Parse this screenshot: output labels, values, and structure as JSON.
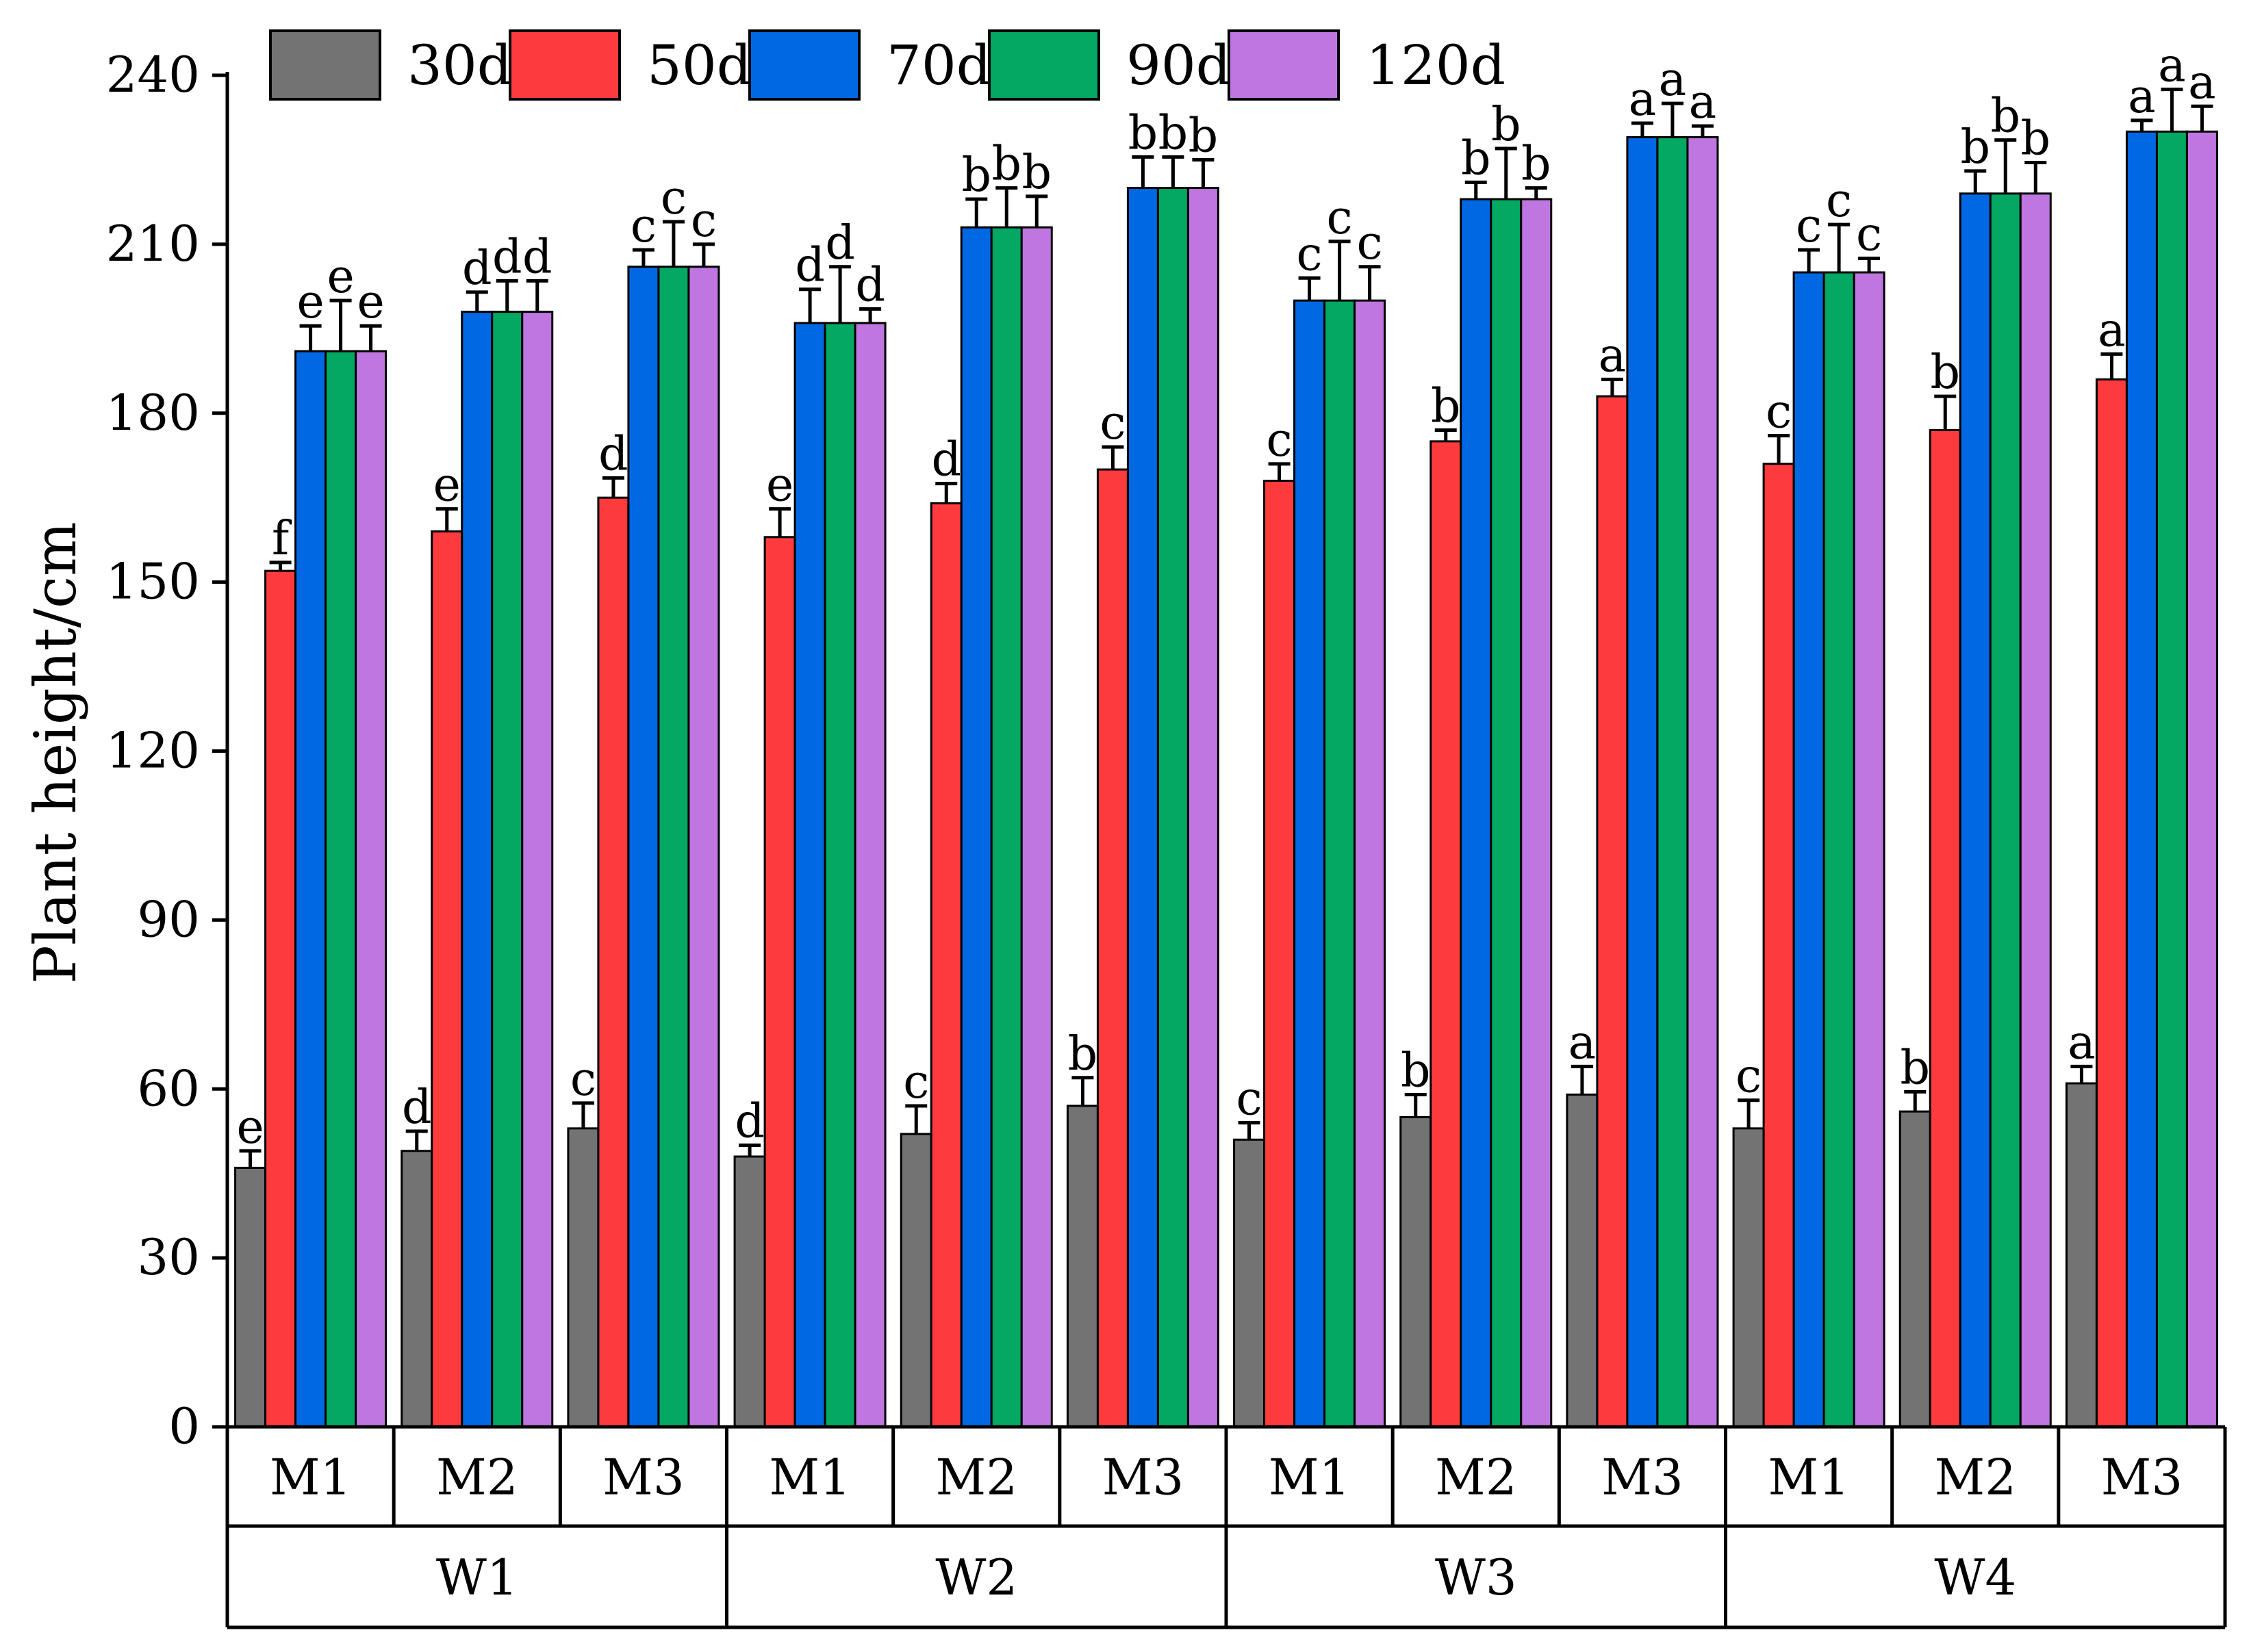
{
  "chart_data": {
    "type": "bar",
    "ylabel": "Plant height/cm",
    "ylim": [
      0,
      240
    ],
    "yticks": [
      0,
      30,
      60,
      90,
      120,
      150,
      180,
      210,
      240
    ],
    "legend_position": "top",
    "groups": [
      {
        "label": "W1",
        "subgroups": [
          "M1",
          "M2",
          "M3"
        ]
      },
      {
        "label": "W2",
        "subgroups": [
          "M1",
          "M2",
          "M3"
        ]
      },
      {
        "label": "W3",
        "subgroups": [
          "M1",
          "M2",
          "M3"
        ]
      },
      {
        "label": "W4",
        "subgroups": [
          "M1",
          "M2",
          "M3"
        ]
      }
    ],
    "series": [
      {
        "name": "30d",
        "color": "#737373",
        "values": [
          46,
          49,
          53,
          48,
          52,
          57,
          51,
          55,
          59,
          53,
          56,
          61
        ],
        "errors": [
          3,
          3.5,
          4.5,
          2,
          5,
          5,
          3,
          4,
          5,
          5,
          3.5,
          3
        ],
        "letters": [
          "e",
          "d",
          "c",
          "d",
          "c",
          "b",
          "c",
          "b",
          "a",
          "c",
          "b",
          "a"
        ]
      },
      {
        "name": "50d",
        "color": "#fe3b3c",
        "values": [
          152,
          159,
          165,
          158,
          164,
          170,
          168,
          175,
          183,
          171,
          177,
          186
        ],
        "errors": [
          1.5,
          4,
          3.5,
          5,
          3.5,
          4,
          3,
          2,
          3,
          5,
          6,
          4.5
        ],
        "letters": [
          "f",
          "e",
          "d",
          "e",
          "d",
          "c",
          "c",
          "b",
          "a",
          "c",
          "b",
          "a"
        ]
      },
      {
        "name": "70d",
        "color": "#0168e3",
        "values": [
          191,
          198,
          206,
          196,
          213,
          220,
          200,
          218,
          229,
          205,
          219,
          230
        ],
        "errors": [
          4.5,
          3.5,
          3,
          6,
          5,
          5.5,
          4,
          3,
          2.5,
          4,
          4,
          2
        ],
        "letters": [
          "e",
          "d",
          "c",
          "d",
          "b",
          "b",
          "c",
          "b",
          "a",
          "c",
          "b",
          "a"
        ]
      },
      {
        "name": "90d",
        "color": "#03a862",
        "values": [
          191,
          198,
          206,
          196,
          213,
          220,
          200,
          218,
          229,
          205,
          219,
          230
        ],
        "errors": [
          9,
          5.5,
          8,
          10,
          7,
          5.5,
          10.5,
          9,
          6,
          8.5,
          9.5,
          7.5
        ],
        "letters": [
          "e",
          "d",
          "c",
          "d",
          "b",
          "b",
          "c",
          "b",
          "a",
          "c",
          "b",
          "a"
        ]
      },
      {
        "name": "120d",
        "color": "#c076e1",
        "values": [
          191,
          198,
          206,
          196,
          213,
          220,
          200,
          218,
          229,
          205,
          219,
          230
        ],
        "errors": [
          4.5,
          5.5,
          4,
          2.5,
          5.5,
          5,
          6,
          2,
          2,
          2.5,
          5.5,
          4.5
        ],
        "letters": [
          "e",
          "d",
          "c",
          "d",
          "b",
          "b",
          "c",
          "b",
          "a",
          "c",
          "b",
          "a"
        ]
      }
    ]
  }
}
